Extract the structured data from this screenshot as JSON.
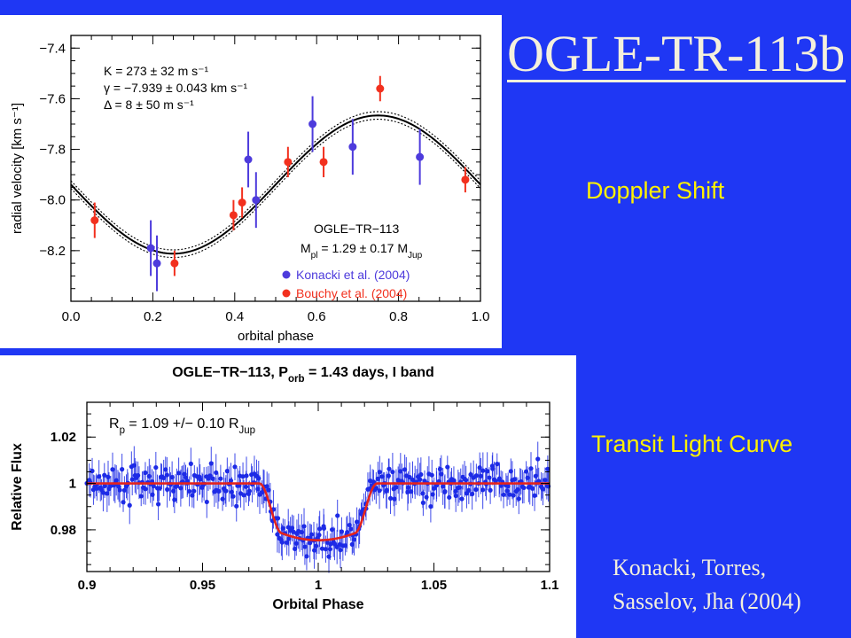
{
  "slide": {
    "title": "OGLE-TR-113b",
    "doppler_label": "Doppler Shift",
    "transit_label": "Transit Light Curve",
    "credit_line1": "Konacki, Torres,",
    "credit_line2": "Sasselov, Jha (2004)",
    "colors": {
      "background": "#1f37f4",
      "label": "#fff100",
      "title": "#f4f0dc"
    }
  },
  "chart_data": [
    {
      "type": "scatter",
      "title": "",
      "xlabel": "orbital phase",
      "ylabel": "radial velocity [km s⁻¹]",
      "xlim": [
        0.0,
        1.0
      ],
      "ylim": [
        -8.4,
        -7.35
      ],
      "x_ticks": [
        "0.0",
        "0.2",
        "0.4",
        "0.6",
        "0.8",
        "1.0"
      ],
      "y_ticks": [
        "−7.4",
        "−7.6",
        "−7.8",
        "−8.0",
        "−8.2"
      ],
      "grid": false,
      "fit_params": {
        "line1": "K = 273 ± 32 m s⁻¹",
        "line2": "γ = −7.939 ± 0.043 km s⁻¹",
        "line3": "Δ = 8 ± 50 m s⁻¹"
      },
      "object_label": "OGLE−TR−113",
      "mass_label": "M_pl = 1.29 ± 0.17 M_Jup",
      "legend_position": "bottom-right",
      "model": {
        "name": "",
        "gamma": -7.939,
        "K": 0.273,
        "band": 0.015,
        "color": "#000000"
      },
      "series": [
        {
          "name": "Konacki et al. (2004)",
          "color": "#4d3bdc",
          "points": [
            {
              "x": 0.195,
              "y": -8.19,
              "err": 0.11
            },
            {
              "x": 0.21,
              "y": -8.25,
              "err": 0.11
            },
            {
              "x": 0.433,
              "y": -7.84,
              "err": 0.11
            },
            {
              "x": 0.452,
              "y": -8.0,
              "err": 0.11
            },
            {
              "x": 0.59,
              "y": -7.7,
              "err": 0.11
            },
            {
              "x": 0.688,
              "y": -7.79,
              "err": 0.11
            },
            {
              "x": 0.852,
              "y": -7.83,
              "err": 0.11
            }
          ]
        },
        {
          "name": "Bouchy et al. (2004)",
          "color": "#f2301e",
          "points": [
            {
              "x": 0.058,
              "y": -8.08,
              "err": 0.07
            },
            {
              "x": 0.253,
              "y": -8.25,
              "err": 0.05
            },
            {
              "x": 0.397,
              "y": -8.06,
              "err": 0.06
            },
            {
              "x": 0.418,
              "y": -8.01,
              "err": 0.06
            },
            {
              "x": 0.53,
              "y": -7.85,
              "err": 0.06
            },
            {
              "x": 0.617,
              "y": -7.85,
              "err": 0.06
            },
            {
              "x": 0.755,
              "y": -7.56,
              "err": 0.05
            },
            {
              "x": 0.963,
              "y": -7.92,
              "err": 0.05
            }
          ]
        }
      ]
    },
    {
      "type": "scatter",
      "title": "OGLE−TR−113, P_orb = 1.43 days, I band",
      "xlabel": "Orbital Phase",
      "ylabel": "Relative Flux",
      "xlim": [
        0.9,
        1.1
      ],
      "ylim": [
        0.962,
        1.035
      ],
      "x_ticks": [
        "0.9",
        "0.95",
        "1",
        "1.05",
        "1.1"
      ],
      "y_ticks": [
        "0.98",
        "1",
        "1.02"
      ],
      "grid": false,
      "annotation": "R_p = 1.09 +/− 0.10 R_Jup",
      "model": {
        "name": "",
        "color": "#e4231c",
        "baseline": 1.0,
        "depth": 0.0245,
        "ingress_start": 0.9745,
        "full_start": 0.9845,
        "full_end": 1.0155,
        "egress_end": 1.0255
      },
      "observations": {
        "name": "",
        "color": "#1d2be6",
        "phase_range": [
          0.9,
          1.1
        ],
        "n_points": 340,
        "typical_scatter": 0.0065,
        "typical_error": 0.006
      }
    }
  ]
}
